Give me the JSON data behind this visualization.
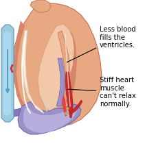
{
  "bg_color": "#ffffff",
  "heart_outer_color": "#E8A882",
  "heart_muscle_color": "#D4856A",
  "heart_dark_color": "#C07055",
  "heart_inner_color": "#F2C8A8",
  "heart_inner_dark": "#E0A880",
  "cavity_color": "#F5D5B5",
  "aorta_color": "#9B90C8",
  "aorta_highlight": "#B8AEDD",
  "aorta_shadow": "#7060A0",
  "pulm_color": "#8878B8",
  "blue_vessel_color": "#88C4E0",
  "blue_vessel_dark": "#5A9EC0",
  "blue_vessel_light": "#AAD8EE",
  "red_vessel_color": "#CC2828",
  "red_vessel_light": "#E84040",
  "white_line": "#F8F0E8",
  "septum_color": "#D8C8B8",
  "annotation_color": "#000000",
  "text1": "Less blood\nfills the\nventricles.",
  "text2": "Stiff heart\nmuscle\ncan't relax\nnormally.",
  "text_fontsize": 7.2,
  "fig_width": 2.27,
  "fig_height": 2.16,
  "dpi": 100
}
